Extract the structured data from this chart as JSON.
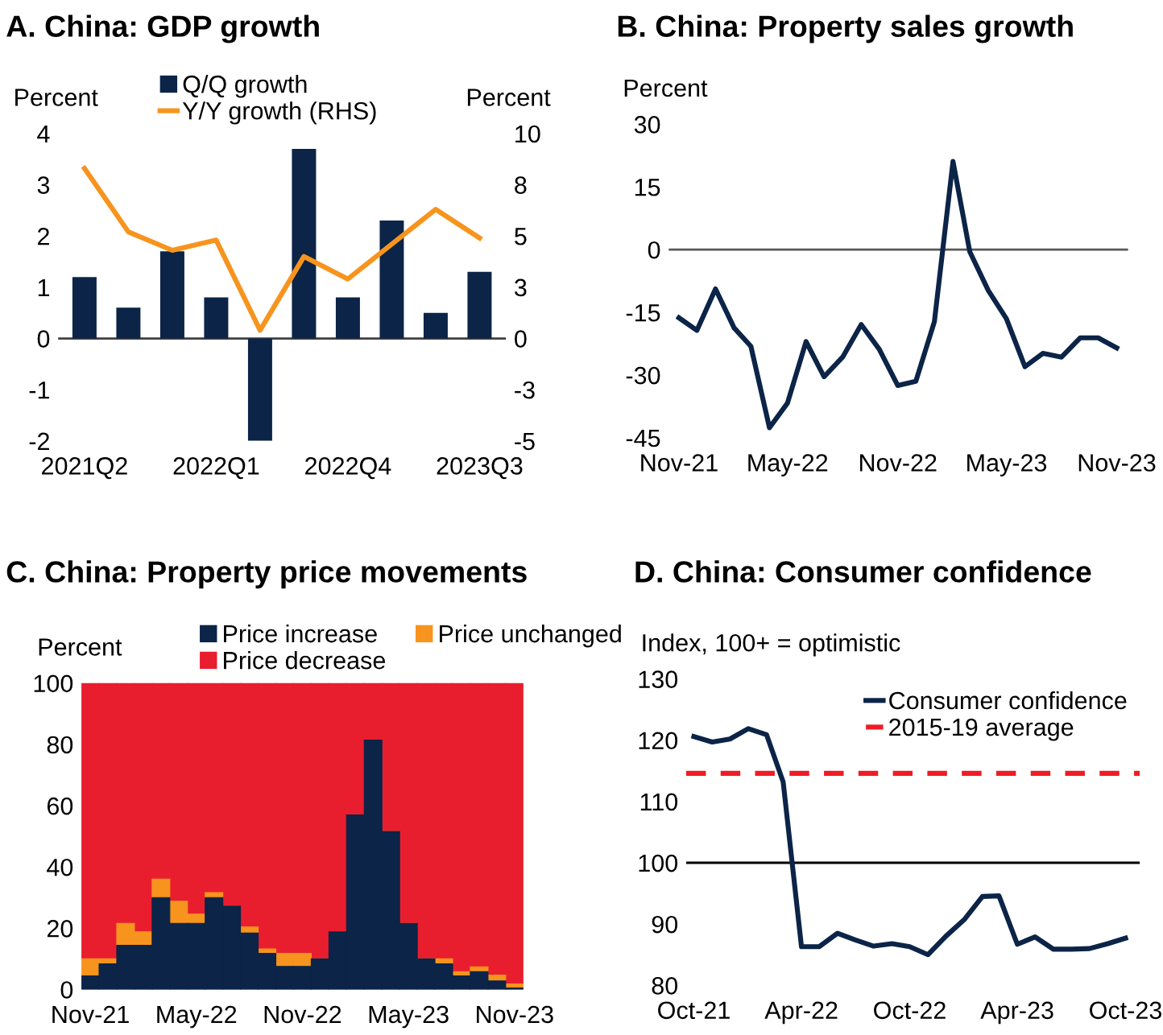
{
  "chart_data": [
    {
      "type": "bar",
      "title": "A. China: GDP growth",
      "ylabel": "Percent",
      "y2label": "Percent",
      "legend": "top",
      "categories": [
        "2021Q2",
        null,
        null,
        "2022Q1",
        null,
        null,
        "2022Q4",
        null,
        null,
        "2023Q3"
      ],
      "series": [
        {
          "name": "Q/Q growth",
          "type": "bar",
          "color": "#0b2447",
          "values": [
            1.2,
            0.6,
            1.7,
            0.8,
            -2.0,
            3.7,
            0.8,
            2.3,
            0.5,
            1.3
          ]
        },
        {
          "name": "Y/Y growth (RHS)",
          "type": "line",
          "axis": "y2",
          "color": "#f7941d",
          "values": [
            8.3,
            5.2,
            4.3,
            4.8,
            0.4,
            4.0,
            2.9,
            4.6,
            6.3,
            4.9
          ]
        }
      ],
      "ylim": [
        -2,
        4
      ],
      "yticks": [
        -2,
        -1,
        0,
        1,
        2,
        3,
        4
      ],
      "y2lim": [
        -5,
        10
      ],
      "y2ticks": [
        -5,
        {
          "value": -2.5,
          "label": "-3"
        },
        0,
        {
          "value": 2.5,
          "label": "3"
        },
        5,
        {
          "value": 7.5,
          "label": "8"
        },
        10
      ],
      "ref_lines": [
        {
          "axis": "y",
          "value": 0,
          "color": "#404040"
        }
      ]
    },
    {
      "type": "line",
      "title": "B. China: Property sales growth",
      "ylabel": "Percent",
      "x": [
        "2021-11",
        "2021-12",
        "2022-01",
        "2022-02",
        "2022-03",
        "2022-04",
        "2022-05",
        "2022-06",
        "2022-07",
        "2022-08",
        "2022-09",
        "2022-10",
        "2022-11",
        "2022-12",
        "2023-01",
        "2023-02",
        "2023-03",
        "2023-04",
        "2023-05",
        "2023-06",
        "2023-07",
        "2023-08",
        "2023-09",
        "2023-10",
        "2023-11"
      ],
      "series": [
        {
          "color": "#0b2447",
          "values": [
            -16.3,
            -19.3,
            -9.4,
            -18.7,
            -23.1,
            -42.6,
            -36.7,
            -22.0,
            -30.4,
            -25.7,
            -17.9,
            -23.8,
            -32.5,
            -31.5,
            -17.2,
            21.1,
            -0.5,
            -9.8,
            -16.5,
            -28.0,
            -24.8,
            -25.7,
            -21.1,
            -21.1,
            -23.5
          ]
        }
      ],
      "xlim": [
        "2021-10-15",
        "2023-11-20"
      ],
      "xticks": [
        {
          "value": "2021-11",
          "label": "Nov-21"
        },
        {
          "value": "2022-05",
          "label": "May-22"
        },
        {
          "value": "2022-11",
          "label": "Nov-22"
        },
        {
          "value": "2023-05",
          "label": "May-23"
        },
        {
          "value": "2023-11",
          "label": "Nov-23"
        }
      ],
      "ylim": [
        -45,
        30
      ],
      "yticks": [
        -45,
        -30,
        -15,
        0,
        15,
        30
      ],
      "ref_lines": [
        {
          "axis": "y",
          "value": 0,
          "color": "#595959"
        }
      ]
    },
    {
      "type": "bar",
      "stacked": true,
      "title": "C. China: Property price movements",
      "ylabel": "Percent",
      "legend": "top",
      "categories": [
        "Nov-21",
        null,
        null,
        null,
        null,
        null,
        "May-22",
        null,
        null,
        null,
        null,
        null,
        "Nov-22",
        null,
        null,
        null,
        null,
        null,
        "May-23",
        null,
        null,
        null,
        null,
        null,
        "Nov-23"
      ],
      "series": [
        {
          "name": "Price increase",
          "color": "#0b2447",
          "values": [
            4.4,
            8.4,
            14.4,
            14.4,
            30.0,
            21.6,
            21.6,
            30.0,
            27.2,
            18.4,
            11.8,
            7.5,
            7.5,
            10.0,
            18.8,
            57.0,
            81.4,
            51.6,
            21.6,
            10.0,
            8.4,
            4.4,
            5.8,
            2.8,
            0.5
          ]
        },
        {
          "name": "Price unchanged",
          "color": "#f7941d",
          "values": [
            5.6,
            1.6,
            7.2,
            4.4,
            6.0,
            7.2,
            3.0,
            1.6,
            0.0,
            2.0,
            1.4,
            4.3,
            4.3,
            0.0,
            0.0,
            0.0,
            0.0,
            0.0,
            0.0,
            0.0,
            1.6,
            1.4,
            1.6,
            1.9,
            1.3
          ]
        },
        {
          "name": "Price decrease",
          "color": "#e81e2f",
          "values": [
            90.0,
            90.0,
            78.4,
            81.2,
            64.0,
            71.2,
            75.4,
            68.4,
            72.8,
            79.6,
            86.8,
            88.2,
            88.2,
            90.0,
            81.2,
            43.0,
            18.6,
            48.4,
            78.4,
            90.0,
            90.0,
            94.2,
            92.6,
            95.3,
            98.2
          ]
        }
      ],
      "ylim": [
        0,
        100
      ],
      "yticks": [
        0,
        20,
        40,
        60,
        80,
        100
      ]
    },
    {
      "type": "line",
      "title": "D. China: Consumer confidence",
      "ylabel": "Index, 100+ = optimistic",
      "legend": "top right",
      "x": [
        "2021-10",
        "2021-11",
        "2021-12",
        "2022-01",
        "2022-02",
        "2022-03",
        "2022-04",
        "2022-05",
        "2022-06",
        "2022-07",
        "2022-08",
        "2022-09",
        "2022-10",
        "2022-11",
        "2022-12",
        "2023-01",
        "2023-02",
        "2023-03",
        "2023-04",
        "2023-05",
        "2023-06",
        "2023-07",
        "2023-08",
        "2023-09",
        "2023-10"
      ],
      "series": [
        {
          "name": "Consumer confidence",
          "color": "#0b2447",
          "values": [
            120.6,
            119.7,
            120.2,
            121.9,
            120.9,
            113.2,
            86.3,
            86.3,
            88.5,
            87.4,
            86.4,
            86.8,
            86.3,
            85.0,
            88.0,
            90.7,
            94.5,
            94.6,
            86.7,
            87.9,
            85.9,
            85.9,
            86.0,
            86.8,
            87.7
          ]
        }
      ],
      "xlim": [
        "2021-09-18",
        "2023-10-25"
      ],
      "xticks": [
        {
          "value": "2021-10",
          "label": "Oct-21"
        },
        {
          "value": "2022-04",
          "label": "Apr-22"
        },
        {
          "value": "2022-10",
          "label": "Oct-22"
        },
        {
          "value": "2023-04",
          "label": "Apr-23"
        },
        {
          "value": "2023-10",
          "label": "Oct-23"
        }
      ],
      "ylim": [
        80,
        130
      ],
      "yticks": [
        80,
        90,
        100,
        110,
        120,
        130
      ],
      "ref_lines": [
        {
          "axis": "y",
          "value": 100,
          "color": "#000000"
        },
        {
          "axis": "y",
          "value": 114.6,
          "color": "#ee1c25",
          "line_style": "dashed",
          "label": "2015-19 average"
        }
      ]
    }
  ]
}
